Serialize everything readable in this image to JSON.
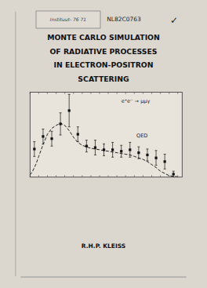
{
  "chart_data": {
    "type": "line",
    "title": "MONTE CARLO SIMULATION\nOF RADIATIVE PROCESSES\nIN ELECTRON-POSITRON\nSCATTERING",
    "subtitle": "R.H.P. KLEISS",
    "annotations": [
      "Instituut- 76 71",
      "NL82C0763",
      "✓",
      "e⁺e⁻ → μμγ",
      "QED"
    ],
    "series": [
      {
        "type": "line",
        "line_style": "dashed",
        "color": "#222222",
        "x": [
          0.0,
          0.3,
          0.7,
          1.0,
          1.5,
          2.0,
          2.5,
          3.0,
          3.5,
          4.0,
          4.5,
          5.0,
          5.5,
          6.0,
          6.5,
          7.0,
          7.5,
          8.0,
          8.5,
          9.0,
          9.5,
          10.0,
          10.5,
          11.0,
          11.5,
          12.0,
          12.5,
          13.0,
          13.5,
          14.0,
          14.5,
          15.0,
          15.5,
          16.0,
          16.5,
          17.0
        ],
        "values": [
          0.03,
          0.08,
          0.18,
          0.28,
          0.44,
          0.58,
          0.66,
          0.7,
          0.73,
          0.7,
          0.63,
          0.54,
          0.47,
          0.43,
          0.41,
          0.39,
          0.38,
          0.37,
          0.36,
          0.35,
          0.34,
          0.33,
          0.32,
          0.31,
          0.3,
          0.28,
          0.26,
          0.24,
          0.21,
          0.17,
          0.13,
          0.08,
          0.05,
          0.02,
          0.01,
          0.005
        ]
      },
      {
        "type": "scatter",
        "marker": "square",
        "color": "#111111",
        "x": [
          0.5,
          1.5,
          2.5,
          3.5,
          4.5,
          5.5,
          6.5,
          7.5,
          8.5,
          9.5,
          10.5,
          11.5,
          12.5,
          13.5,
          14.5,
          15.5,
          16.5
        ],
        "values": [
          0.38,
          0.55,
          0.52,
          0.72,
          0.9,
          0.58,
          0.42,
          0.4,
          0.37,
          0.37,
          0.35,
          0.37,
          0.33,
          0.3,
          0.26,
          0.21,
          0.04
        ],
        "errors": [
          0.1,
          0.1,
          0.1,
          0.15,
          0.22,
          0.1,
          0.08,
          0.1,
          0.08,
          0.1,
          0.08,
          0.1,
          0.08,
          0.08,
          0.1,
          0.1,
          0.04
        ]
      }
    ],
    "xlim": [
      0,
      17.5
    ],
    "ylim": [
      0,
      1.15
    ],
    "xticks": [
      0,
      1,
      2,
      3,
      4,
      5,
      6,
      7,
      8,
      9,
      10,
      11,
      12,
      13,
      14,
      15,
      16,
      17
    ],
    "tick_labels": false,
    "grid": false
  }
}
